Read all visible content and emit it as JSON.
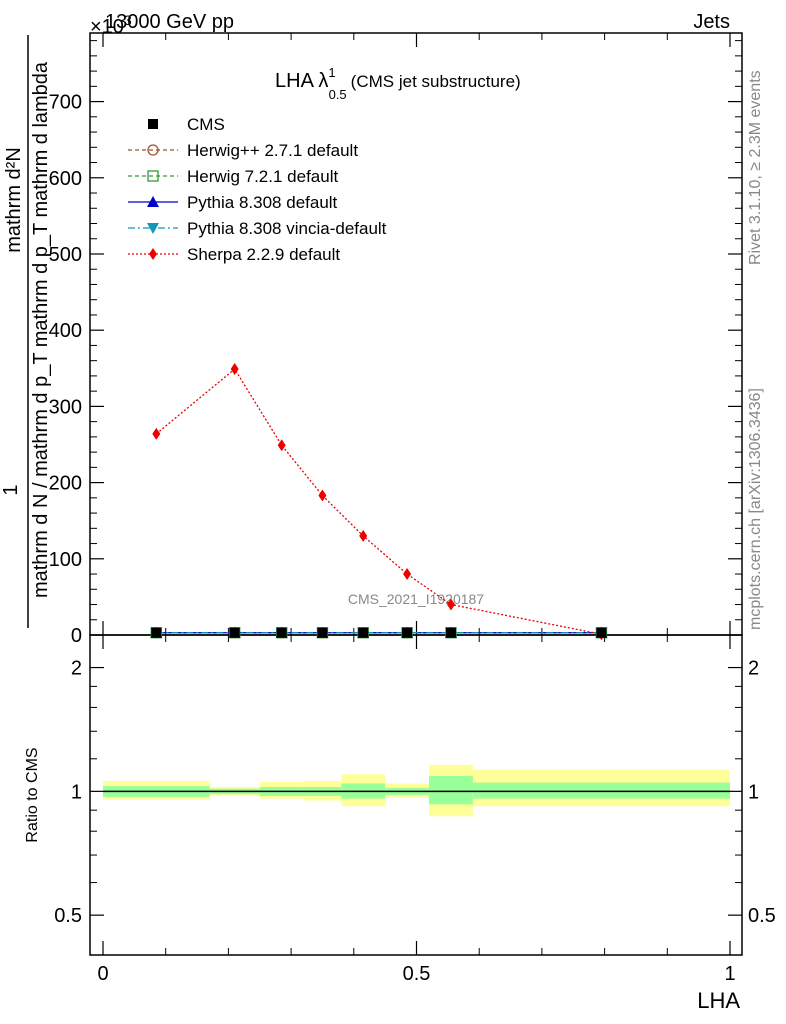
{
  "header": {
    "energy_label": "13000 GeV pp",
    "exponent_label": "×10",
    "exponent_sup": "3",
    "process_label": "Jets"
  },
  "side": {
    "rivet_label": "Rivet 3.1.10, ≥ 2.3M events",
    "mcplots_label": "mcplots.cern.ch [arXiv:1306.3436]"
  },
  "chart_data": {
    "type": "line",
    "title": "LHA λ",
    "title_sup": "1",
    "title_sub": "0.5",
    "title_note": "(CMS jet substructure)",
    "watermark": "CMS_2021_I1920187",
    "xlabel": "LHA",
    "ylabel_num": "1",
    "ylabel_den": "mathrm d N / mathrm d p_T mathrm d p_T mathrm d lambda",
    "ylabel_top": "mathrm d²N",
    "ratio_ylabel": "Ratio to CMS",
    "xlim": [
      0,
      1
    ],
    "ylim": [
      0,
      790
    ],
    "y_multiplier": 1000,
    "ratio_ylim": [
      0.4,
      2.4
    ],
    "ratio_log": true,
    "x_ticks": [
      0,
      0.5,
      1
    ],
    "x_tick_labels": [
      "0",
      "0.5",
      "1"
    ],
    "y_ticks": [
      0,
      100,
      200,
      300,
      400,
      500,
      600,
      700
    ],
    "y_tick_labels": [
      "0",
      "100",
      "200",
      "300",
      "400",
      "500",
      "600",
      "700"
    ],
    "ratio_ticks": [
      0.5,
      1,
      2
    ],
    "ratio_tick_labels": [
      "0.5",
      "1",
      "2"
    ],
    "bin_edges": [
      0,
      0.17,
      0.25,
      0.32,
      0.38,
      0.45,
      0.52,
      0.59,
      1.0
    ],
    "points_x": [
      0.085,
      0.21,
      0.285,
      0.35,
      0.415,
      0.485,
      0.555,
      0.795
    ],
    "ratio_band_inner": [
      [
        0.97,
        1.03
      ],
      [
        0.985,
        1.015
      ],
      [
        0.975,
        1.025
      ],
      [
        0.975,
        1.025
      ],
      [
        0.96,
        1.045
      ],
      [
        0.98,
        1.02
      ],
      [
        0.93,
        1.09
      ],
      [
        0.96,
        1.05
      ]
    ],
    "ratio_band_outer": [
      [
        0.955,
        1.06
      ],
      [
        0.975,
        1.025
      ],
      [
        0.96,
        1.055
      ],
      [
        0.95,
        1.06
      ],
      [
        0.92,
        1.1
      ],
      [
        0.965,
        1.045
      ],
      [
        0.87,
        1.16
      ],
      [
        0.92,
        1.13
      ]
    ],
    "legend_position": "top-left",
    "series": [
      {
        "name": "CMS",
        "color": "#000000",
        "marker": "square",
        "line": "none",
        "values": [
          3,
          3,
          3,
          3,
          3,
          3,
          3,
          3
        ]
      },
      {
        "name": "Herwig++ 2.7.1 default",
        "color": "#a0522d",
        "marker": "circle-open",
        "line": "dashed",
        "values": [
          3,
          3,
          3,
          3,
          3,
          3,
          3,
          3
        ]
      },
      {
        "name": "Herwig 7.2.1 default",
        "color": "#339933",
        "marker": "square-open",
        "line": "dashed",
        "values": [
          3,
          3,
          3,
          3,
          3,
          3,
          3,
          3
        ]
      },
      {
        "name": "Pythia 8.308 default",
        "color": "#0000cc",
        "marker": "triangle-up",
        "line": "solid",
        "values": [
          3,
          3,
          3,
          3,
          3,
          3,
          3,
          3
        ]
      },
      {
        "name": "Pythia 8.308 vincia-default",
        "color": "#1199bb",
        "marker": "triangle-down",
        "line": "dashdot",
        "values": [
          3,
          3,
          3,
          3,
          3,
          3,
          3,
          3
        ]
      },
      {
        "name": "Sherpa 2.2.9 default",
        "color": "#ee0000",
        "marker": "diamond",
        "line": "dotted",
        "values": [
          264,
          349,
          249,
          183,
          130,
          80,
          40,
          1
        ]
      }
    ]
  }
}
